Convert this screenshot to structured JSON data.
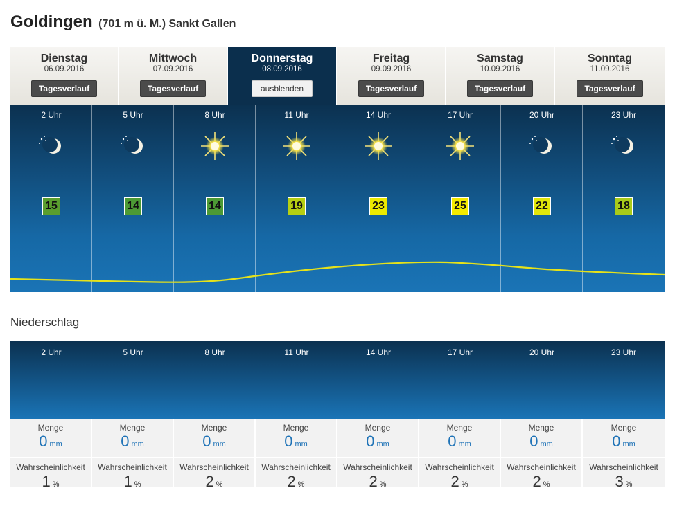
{
  "header": {
    "location": "Goldingen",
    "subtitle": "(701 m ü. M.) Sankt Gallen"
  },
  "tabs": [
    {
      "day": "Dienstag",
      "date": "06.09.2016",
      "button": "Tagesverlauf",
      "active": false
    },
    {
      "day": "Mittwoch",
      "date": "07.09.2016",
      "button": "Tagesverlauf",
      "active": false
    },
    {
      "day": "Donnerstag",
      "date": "08.09.2016",
      "button": "ausblenden",
      "active": true
    },
    {
      "day": "Freitag",
      "date": "09.09.2016",
      "button": "Tagesverlauf",
      "active": false
    },
    {
      "day": "Samstag",
      "date": "10.09.2016",
      "button": "Tagesverlauf",
      "active": false
    },
    {
      "day": "Sonntag",
      "date": "11.09.2016",
      "button": "Tagesverlauf",
      "active": false
    }
  ],
  "hourly": [
    {
      "hour": "2 Uhr",
      "icon": "moon-clear-icon",
      "temp": "15",
      "temp_color": "#5a9e2f"
    },
    {
      "hour": "5 Uhr",
      "icon": "moon-clear-icon",
      "temp": "14",
      "temp_color": "#4c9a35"
    },
    {
      "hour": "8 Uhr",
      "icon": "sun-icon",
      "temp": "14",
      "temp_color": "#4c9a35"
    },
    {
      "hour": "11 Uhr",
      "icon": "sun-icon",
      "temp": "19",
      "temp_color": "#b6cf12"
    },
    {
      "hour": "14 Uhr",
      "icon": "sun-icon",
      "temp": "23",
      "temp_color": "#ecea00"
    },
    {
      "hour": "17 Uhr",
      "icon": "sun-icon",
      "temp": "25",
      "temp_color": "#f3ea00"
    },
    {
      "hour": "20 Uhr",
      "icon": "moon-clear-icon",
      "temp": "22",
      "temp_color": "#e1e60a"
    },
    {
      "hour": "23 Uhr",
      "icon": "moon-clear-icon",
      "temp": "18",
      "temp_color": "#a9cb1a"
    }
  ],
  "precipitation": {
    "title": "Niederschlag",
    "amount_label": "Menge",
    "amount_unit": "mm",
    "probability_label": "Wahrscheinlichkeit",
    "probability_unit": "%",
    "items": [
      {
        "hour": "2 Uhr",
        "amount": "0",
        "probability": "1"
      },
      {
        "hour": "5 Uhr",
        "amount": "0",
        "probability": "1"
      },
      {
        "hour": "8 Uhr",
        "amount": "0",
        "probability": "2"
      },
      {
        "hour": "11 Uhr",
        "amount": "0",
        "probability": "2"
      },
      {
        "hour": "14 Uhr",
        "amount": "0",
        "probability": "2"
      },
      {
        "hour": "17 Uhr",
        "amount": "0",
        "probability": "2"
      },
      {
        "hour": "20 Uhr",
        "amount": "0",
        "probability": "2"
      },
      {
        "hour": "23 Uhr",
        "amount": "0",
        "probability": "3"
      }
    ]
  },
  "colors": {
    "curve": "#e6e21a",
    "active_tab": "#0b2f4d",
    "amount_text": "#1f73b7"
  }
}
